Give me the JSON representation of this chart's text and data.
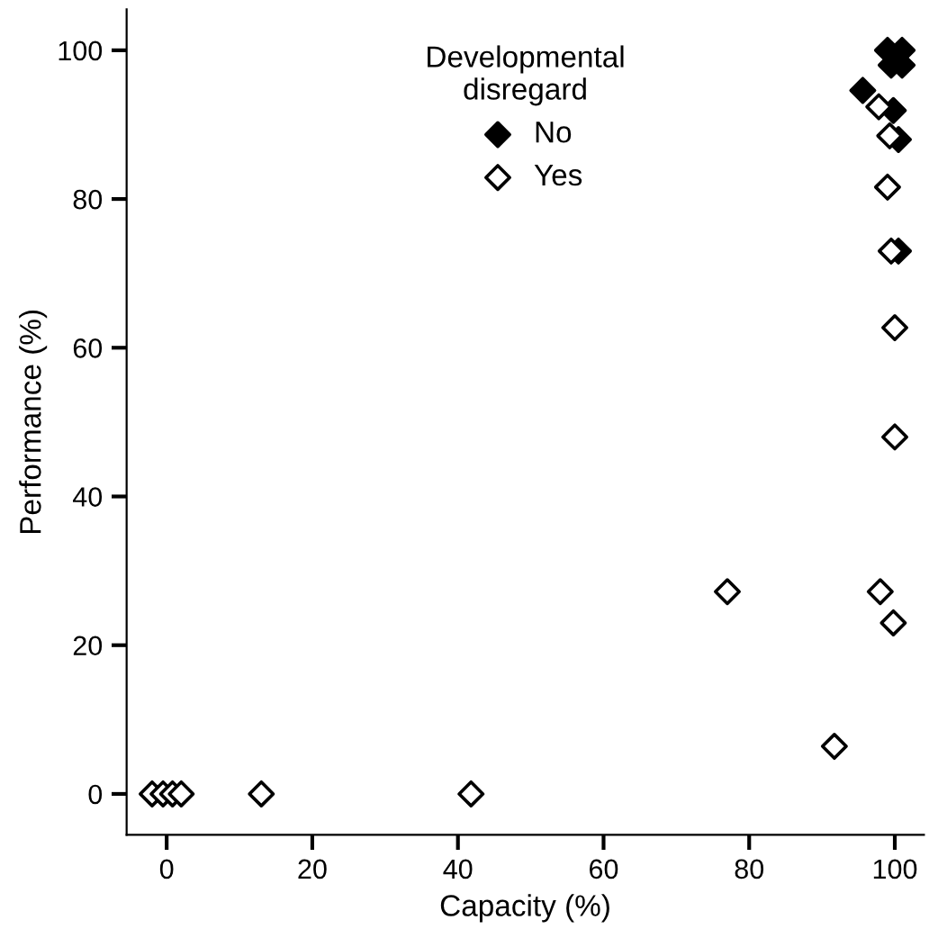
{
  "chart_data": {
    "type": "scatter",
    "xlabel": "Capacity (%)",
    "ylabel": "Performance (%)",
    "legend_title": "Developmental\ndisregard",
    "legend": "top",
    "marker": "diamond",
    "grid": false,
    "xlim": [
      -5.5,
      104
    ],
    "xticks": [
      0,
      20,
      40,
      60,
      80,
      100
    ],
    "ylim": [
      -5.5,
      105.5
    ],
    "yticks": [
      0,
      20,
      40,
      60,
      80,
      100
    ],
    "series": [
      {
        "name": "No",
        "color": "#000000",
        "x": [
          99,
          101,
          99.5,
          101,
          95.6,
          99.8,
          100.5,
          100.5
        ],
        "values": [
          100,
          100,
          98,
          98,
          94.6,
          91.9,
          88,
          73
        ]
      },
      {
        "name": "Yes",
        "color": "#000000",
        "x": [
          -2,
          -0.5,
          0.8,
          2,
          13,
          41.8,
          77,
          91.7,
          98,
          99.8,
          100,
          100,
          99.5,
          99.3,
          99,
          97.8
        ],
        "values": [
          0,
          0,
          0,
          0,
          0,
          0,
          27.2,
          6.4,
          27.2,
          23,
          48,
          62.7,
          73,
          88.5,
          81.6,
          92.4
        ]
      }
    ]
  }
}
